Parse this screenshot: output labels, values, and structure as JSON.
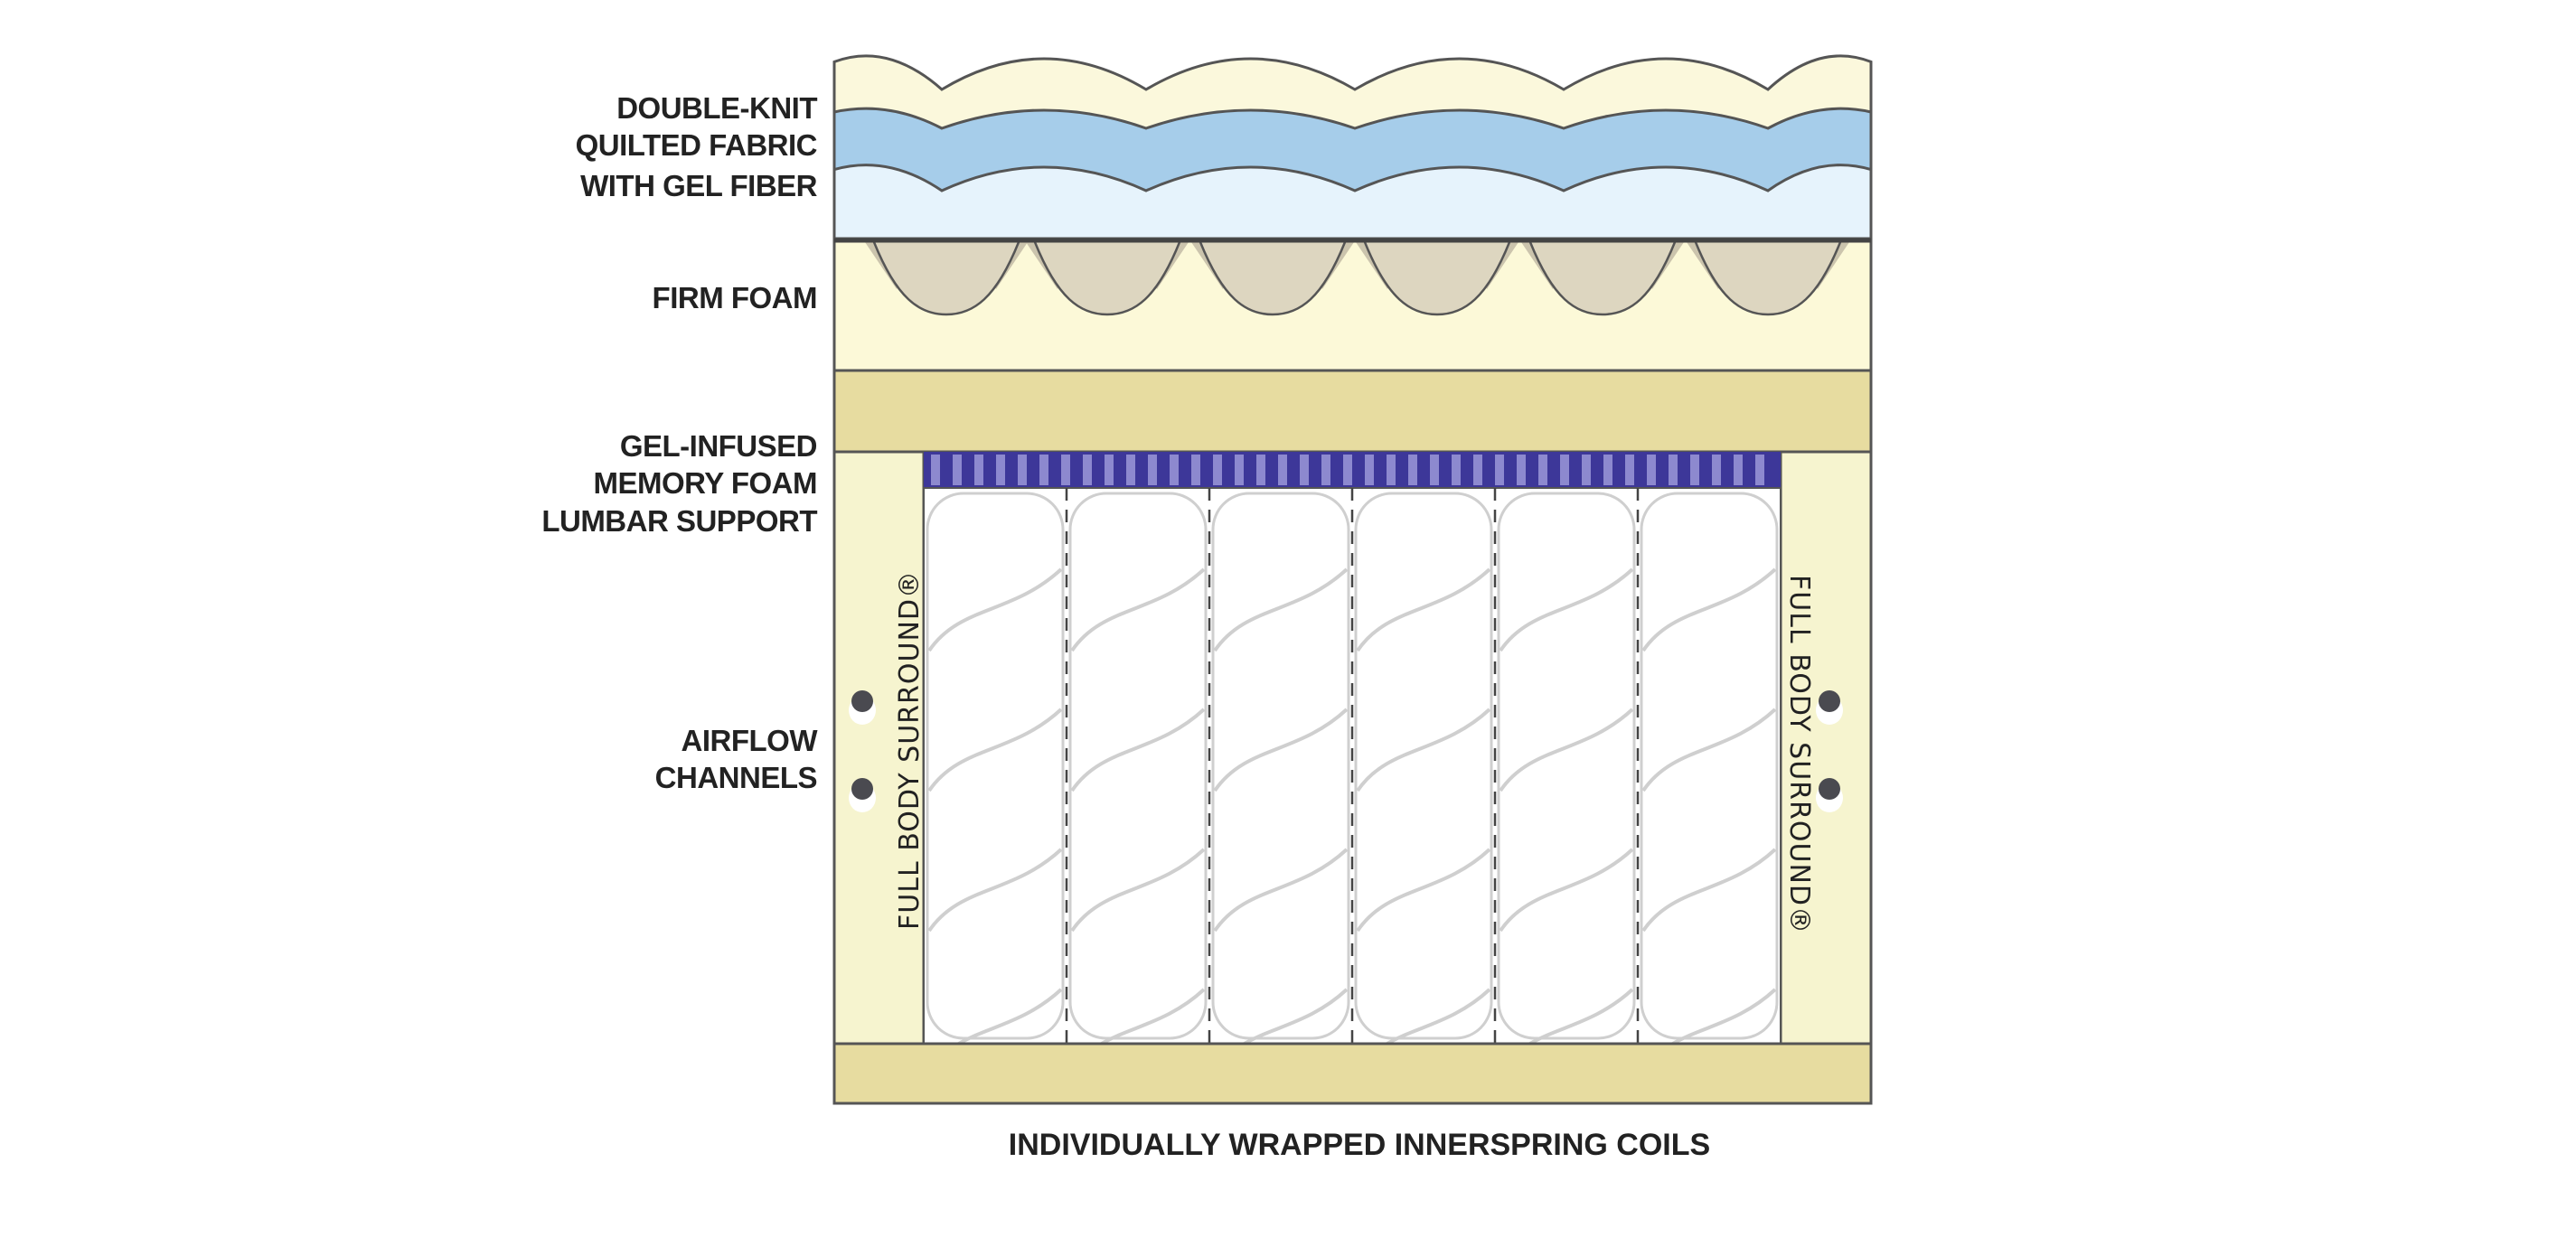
{
  "labels": {
    "quilted_fabric": [
      "DOUBLE-KNIT",
      "QUILTED FABRIC",
      "WITH GEL FIBER"
    ],
    "firm_foam": [
      "FIRM FOAM"
    ],
    "gel_foam": [
      "GEL-INFUSED",
      "MEMORY FOAM",
      "LUMBAR SUPPORT"
    ],
    "airflow": [
      "AIRFLOW",
      "CHANNELS"
    ],
    "surround_left": "FULL BODY SURROUND®",
    "surround_right": "FULL BODY SURROUND®",
    "caption": "INDIVIDUALLY WRAPPED INNERSPRING COILS"
  },
  "colors": {
    "cream": "#fbf8dc",
    "blue": "#a6cdea",
    "light_blue": "#e6f3fc",
    "foam": "#fcf9d8",
    "foam_teeth": "#ddd6c0",
    "gel_tan": "#e7dca0",
    "surround": "#f6f4cf",
    "purple": "#3d3799",
    "purple_stripe": "#8d89cf",
    "outline": "#555555",
    "coil": "#cfcfcf"
  },
  "coil_columns": 6
}
